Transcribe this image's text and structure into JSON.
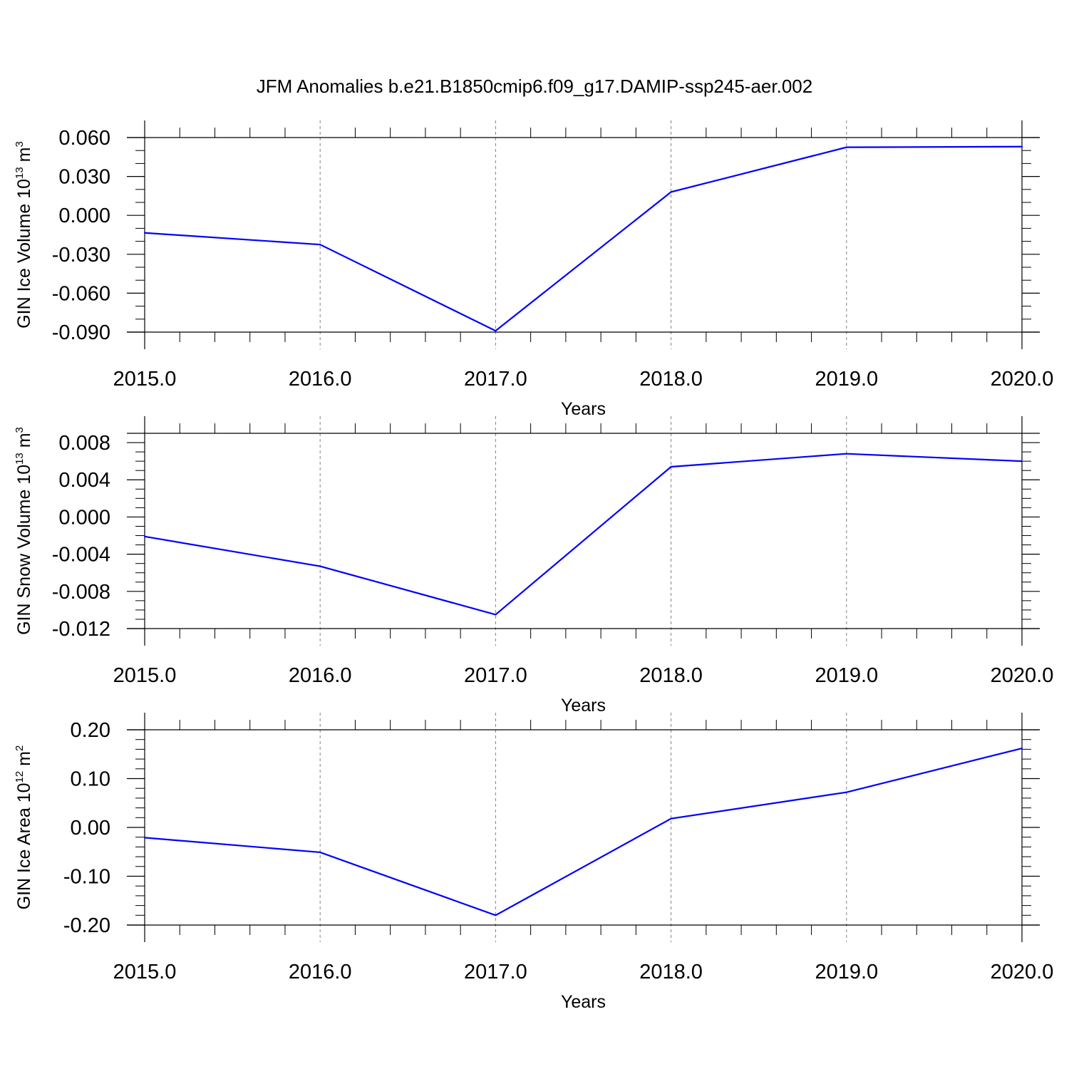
{
  "figure": {
    "title": "JFM Anomalies b.e21.B1850cmip6.f09_g17.DAMIP-ssp245-aer.002"
  },
  "colors": {
    "line": "#0000ff",
    "axis": "#000000",
    "grid": "#808080",
    "background": "#ffffff"
  },
  "chart_data": [
    {
      "type": "line",
      "ylabel_main": "GIN Ice Volume 10",
      "ylabel_sup": "13",
      "ylabel_unit": " m",
      "ylabel_unit_sup": "3",
      "xlabel": "Years",
      "x": [
        2015,
        2016,
        2017,
        2018,
        2019,
        2020
      ],
      "x_tick_labels": [
        "2015.0",
        "2016.0",
        "2017.0",
        "2018.0",
        "2019.0",
        "2020.0"
      ],
      "xlim": [
        2015,
        2020
      ],
      "values": [
        -0.0135,
        -0.0225,
        -0.089,
        0.018,
        0.0525,
        0.053
      ],
      "ylim": [
        -0.09,
        0.06
      ],
      "y_ticks": [
        0.06,
        0.03,
        0.0,
        -0.03,
        -0.06,
        -0.09
      ],
      "y_tick_labels": [
        "0.060",
        "0.030",
        "0.000",
        "-0.030",
        "-0.060",
        "-0.090"
      ],
      "y_minor_step": 0.01,
      "grid": "vertical dashed"
    },
    {
      "type": "line",
      "ylabel_main": "GIN Snow Volume 10",
      "ylabel_sup": "13",
      "ylabel_unit": " m",
      "ylabel_unit_sup": "3",
      "xlabel": "Years",
      "x": [
        2015,
        2016,
        2017,
        2018,
        2019,
        2020
      ],
      "x_tick_labels": [
        "2015.0",
        "2016.0",
        "2017.0",
        "2018.0",
        "2019.0",
        "2020.0"
      ],
      "xlim": [
        2015,
        2020
      ],
      "values": [
        -0.0021,
        -0.0053,
        -0.0105,
        0.0054,
        0.0068,
        0.006
      ],
      "ylim": [
        -0.012,
        0.009
      ],
      "y_ticks": [
        0.008,
        0.004,
        0.0,
        -0.004,
        -0.008,
        -0.012
      ],
      "y_tick_labels": [
        "0.008",
        "0.004",
        "0.000",
        "-0.004",
        "-0.008",
        "-0.012"
      ],
      "y_minor_step": 0.001,
      "grid": "vertical dashed"
    },
    {
      "type": "line",
      "ylabel_main": "GIN Ice Area 10",
      "ylabel_sup": "12",
      "ylabel_unit": " m",
      "ylabel_unit_sup": "2",
      "xlabel": "Years",
      "x": [
        2015,
        2016,
        2017,
        2018,
        2019,
        2020
      ],
      "x_tick_labels": [
        "2015.0",
        "2016.0",
        "2017.0",
        "2018.0",
        "2019.0",
        "2020.0"
      ],
      "xlim": [
        2015,
        2020
      ],
      "values": [
        -0.021,
        -0.051,
        -0.18,
        0.018,
        0.072,
        0.162
      ],
      "ylim": [
        -0.2,
        0.2
      ],
      "y_ticks": [
        0.2,
        0.1,
        0.0,
        -0.1,
        -0.2
      ],
      "y_tick_labels": [
        "0.20",
        "0.10",
        "0.00",
        "-0.10",
        "-0.20"
      ],
      "y_minor_step": 0.02,
      "grid": "vertical dashed"
    }
  ]
}
